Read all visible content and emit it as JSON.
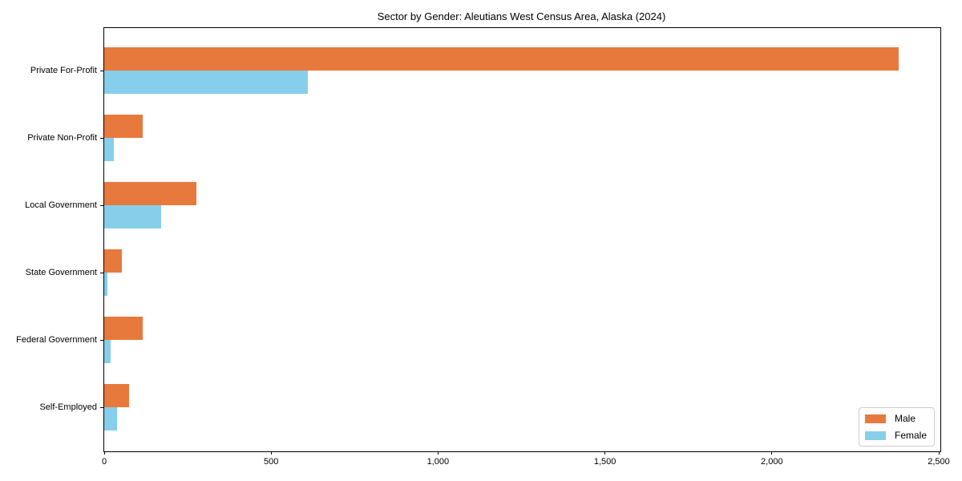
{
  "title": "Sector by Gender: Aleutians West Census Area, Alaska (2024)",
  "chart_data": {
    "type": "bar",
    "orientation": "horizontal",
    "title": "Sector by Gender: Aleutians West Census Area, Alaska (2024)",
    "categories": [
      "Private For-Profit",
      "Private Non-Profit",
      "Local Government",
      "State Government",
      "Federal Government",
      "Self-Employed"
    ],
    "series": [
      {
        "name": "Male",
        "color": "#E8793D",
        "values": [
          2380,
          115,
          275,
          52,
          115,
          75
        ]
      },
      {
        "name": "Female",
        "color": "#87CEEB",
        "values": [
          610,
          30,
          170,
          10,
          20,
          38
        ]
      }
    ],
    "xlabel": "",
    "ylabel": "",
    "xlim": [
      0,
      2500
    ],
    "xticks": [
      0,
      500,
      1000,
      1500,
      2000,
      2500
    ],
    "xtick_labels": [
      "0",
      "500",
      "1,000",
      "1,500",
      "2,000",
      "2,500"
    ],
    "grid": false,
    "legend": {
      "position": "lower right",
      "entries": [
        "Male",
        "Female"
      ]
    },
    "frame_color": "#000000",
    "text_color": "#000000"
  }
}
